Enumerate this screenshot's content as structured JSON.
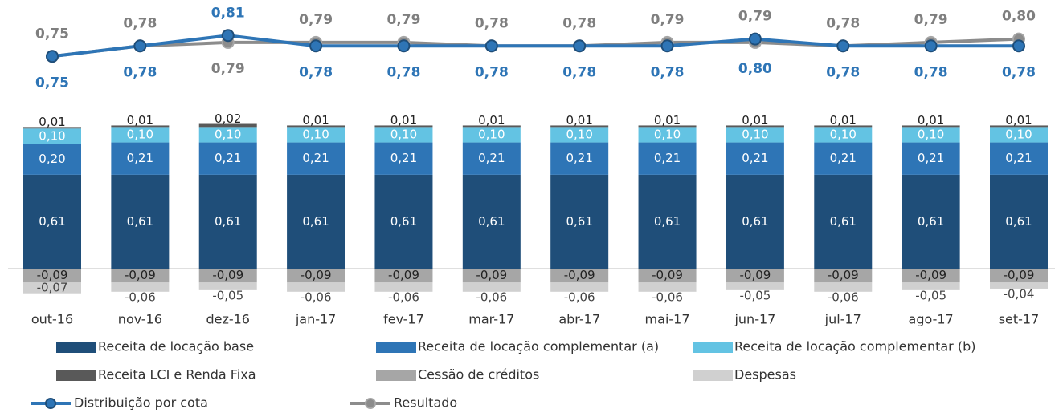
{
  "chart_data": {
    "type": "bar",
    "stacked": true,
    "categories": [
      "out-16",
      "nov-16",
      "dez-16",
      "jan-17",
      "fev-17",
      "mar-17",
      "abr-17",
      "mai-17",
      "jun-17",
      "jul-17",
      "ago-17",
      "set-17"
    ],
    "series": [
      {
        "name": "Receita de locação base",
        "type": "bar",
        "color": "#1f4e79",
        "label_color": "#ffffff",
        "values": [
          0.61,
          0.61,
          0.61,
          0.61,
          0.61,
          0.61,
          0.61,
          0.61,
          0.61,
          0.61,
          0.61,
          0.61
        ],
        "value_labels": [
          "0,61",
          "0,61",
          "0,61",
          "0,61",
          "0,61",
          "0,61",
          "0,61",
          "0,61",
          "0,61",
          "0,61",
          "0,61",
          "0,61"
        ]
      },
      {
        "name": "Receita de locação complementar (a)",
        "type": "bar",
        "color": "#2e75b6",
        "label_color": "#ffffff",
        "values": [
          0.2,
          0.21,
          0.21,
          0.21,
          0.21,
          0.21,
          0.21,
          0.21,
          0.21,
          0.21,
          0.21,
          0.21
        ],
        "value_labels": [
          "0,20",
          "0,21",
          "0,21",
          "0,21",
          "0,21",
          "0,21",
          "0,21",
          "0,21",
          "0,21",
          "0,21",
          "0,21",
          "0,21"
        ]
      },
      {
        "name": "Receita de locação complementar (b)",
        "type": "bar",
        "color": "#63c3e3",
        "label_color": "#ffffff",
        "values": [
          0.1,
          0.1,
          0.1,
          0.1,
          0.1,
          0.1,
          0.1,
          0.1,
          0.1,
          0.1,
          0.1,
          0.1
        ],
        "value_labels": [
          "0,10",
          "0,10",
          "0,10",
          "0,10",
          "0,10",
          "0,10",
          "0,10",
          "0,10",
          "0,10",
          "0,10",
          "0,10",
          "0,10"
        ]
      },
      {
        "name": "Receita LCI e Renda Fixa",
        "type": "bar",
        "color": "#595959",
        "label_color": "#222222",
        "values": [
          0.01,
          0.01,
          0.02,
          0.01,
          0.01,
          0.01,
          0.01,
          0.01,
          0.01,
          0.01,
          0.01,
          0.01
        ],
        "value_labels": [
          "0,01",
          "0,01",
          "0,02",
          "0,01",
          "0,01",
          "0,01",
          "0,01",
          "0,01",
          "0,01",
          "0,01",
          "0,01",
          "0,01"
        ]
      },
      {
        "name": "Cessão de créditos",
        "type": "bar",
        "color": "#a6a6a6",
        "label_color": "#222222",
        "values": [
          -0.09,
          -0.09,
          -0.09,
          -0.09,
          -0.09,
          -0.09,
          -0.09,
          -0.09,
          -0.09,
          -0.09,
          -0.09,
          -0.09
        ],
        "value_labels": [
          "-0,09",
          "-0,09",
          "-0,09",
          "-0,09",
          "-0,09",
          "-0,09",
          "-0,09",
          "-0,09",
          "-0,09",
          "-0,09",
          "-0,09",
          "-0,09"
        ]
      },
      {
        "name": "Despesas",
        "type": "bar",
        "color": "#d0d0d0",
        "label_color": "#444444",
        "values": [
          -0.07,
          -0.06,
          -0.05,
          -0.06,
          -0.06,
          -0.06,
          -0.06,
          -0.06,
          -0.05,
          -0.06,
          -0.05,
          -0.04
        ],
        "value_labels": [
          "-0,07",
          "-0,06",
          "-0,05",
          "-0,06",
          "-0,06",
          "-0,06",
          "-0,06",
          "-0,06",
          "-0,05",
          "-0,06",
          "-0,05",
          "-0,04"
        ]
      },
      {
        "name": "Distribuição por cota",
        "type": "line",
        "color": "#2e75b6",
        "label_color": "#2e75b6",
        "values": [
          0.75,
          0.78,
          0.81,
          0.78,
          0.78,
          0.78,
          0.78,
          0.78,
          0.8,
          0.78,
          0.78,
          0.78
        ],
        "value_labels": [
          "0,75",
          "0,78",
          "0,81",
          "0,78",
          "0,78",
          "0,78",
          "0,78",
          "0,78",
          "0,80",
          "0,78",
          "0,78",
          "0,78"
        ]
      },
      {
        "name": "Resultado",
        "type": "line",
        "color": "#8c8c8c",
        "label_color": "#7f7f7f",
        "values": [
          0.75,
          0.78,
          0.79,
          0.79,
          0.79,
          0.78,
          0.78,
          0.79,
          0.79,
          0.78,
          0.79,
          0.8
        ],
        "value_labels": [
          "0,75",
          "0,78",
          "0,79",
          "0,79",
          "0,79",
          "0,78",
          "0,78",
          "0,79",
          "0,79",
          "0,78",
          "0,79",
          "0,80"
        ]
      }
    ]
  }
}
